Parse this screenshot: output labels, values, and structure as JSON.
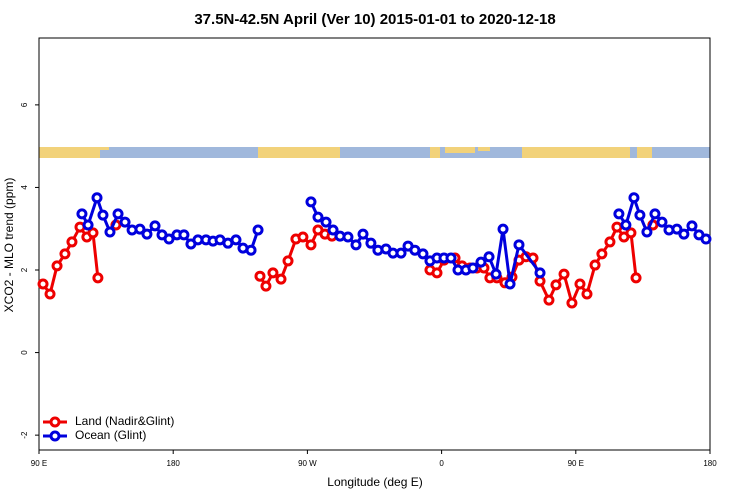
{
  "chart_data": {
    "type": "line",
    "title": "37.5N-42.5N April (Ver 10)   2015-01-01 to 2020-12-18",
    "x_label": "Longitude (deg E)",
    "y_label": "XCO2 - MLO trend (ppm)",
    "xlim": [
      90,
      540
    ],
    "ylim": [
      -2.36,
      7.62
    ],
    "xticks": [
      {
        "value": 90,
        "label": "90 E"
      },
      180,
      {
        "value": 270,
        "label": "90 W"
      },
      {
        "value": 360,
        "label": "0"
      },
      {
        "value": 450,
        "label": "90 E"
      },
      {
        "value": 540,
        "label": "180"
      }
    ],
    "yticks": [
      -2,
      0,
      2,
      4,
      6
    ],
    "legend": "bottom-left",
    "series": [
      {
        "name": "Land (Nadir&Glint)",
        "color": "#ee0000",
        "x": [
          92.7,
          97.4,
          102.1,
          107.4,
          112.1,
          117.5,
          122.1,
          126.2,
          129.5,
          null,
          141.6,
          null,
          238.2,
          242.2,
          246.9,
          252.3,
          257.0,
          262.3,
          267.0,
          272.4,
          277.1,
          281.8,
          286.5,
          null,
          352.2,
          356.9,
          361.6,
          369.0,
          373.7,
          379.0,
          383.7,
          388.4,
          392.4,
          397.1,
          402.5,
          407.2,
          411.9,
          416.6,
          421.3,
          426.0,
          432.0,
          436.7,
          442.1,
          447.4,
          452.8,
          457.5,
          462.9,
          467.5,
          472.9,
          477.6,
          482.3,
          487.0,
          490.4,
          null,
          501.7
        ],
        "values": [
          1.66,
          1.42,
          2.1,
          2.39,
          2.68,
          3.04,
          2.8,
          2.9,
          1.81,
          null,
          3.09,
          null,
          1.85,
          1.61,
          1.93,
          1.78,
          2.22,
          2.75,
          2.8,
          2.61,
          2.97,
          2.87,
          2.82,
          null,
          2.0,
          1.93,
          2.24,
          2.29,
          2.1,
          2.05,
          2.05,
          2.05,
          1.81,
          1.81,
          1.69,
          1.83,
          2.24,
          2.32,
          2.29,
          1.73,
          1.27,
          1.64,
          1.9,
          1.2,
          1.66,
          1.42,
          2.12,
          2.39,
          2.68,
          3.04,
          2.8,
          2.9,
          1.81,
          null,
          3.09
        ]
      },
      {
        "name": "Ocean (Glint)",
        "color": "#0000dd",
        "x": [
          118.8,
          122.9,
          128.9,
          132.9,
          137.6,
          143.0,
          147.7,
          152.4,
          157.7,
          162.4,
          167.8,
          172.5,
          177.2,
          182.5,
          187.2,
          191.9,
          196.6,
          202.0,
          206.7,
          211.4,
          216.7,
          222.1,
          226.8,
          232.2,
          236.9,
          null,
          272.4,
          277.1,
          282.5,
          287.2,
          291.9,
          297.2,
          302.6,
          307.3,
          312.6,
          317.3,
          322.7,
          327.4,
          332.8,
          337.5,
          342.1,
          347.5,
          352.2,
          356.9,
          361.6,
          366.3,
          371.0,
          376.3,
          381.0,
          386.4,
          391.8,
          396.5,
          401.2,
          405.9,
          411.9,
          426.0,
          null,
          478.9,
          483.6,
          489.0,
          493.0,
          497.7,
          503.1,
          507.8,
          512.5,
          517.8,
          522.5,
          527.9,
          532.6,
          537.3
        ],
        "values": [
          3.36,
          3.09,
          3.75,
          3.33,
          2.92,
          3.36,
          3.16,
          2.97,
          2.99,
          2.87,
          3.07,
          2.85,
          2.75,
          2.85,
          2.85,
          2.63,
          2.73,
          2.73,
          2.7,
          2.73,
          2.65,
          2.73,
          2.53,
          2.48,
          2.97,
          null,
          3.65,
          3.28,
          3.16,
          2.97,
          2.82,
          2.8,
          2.61,
          2.87,
          2.65,
          2.48,
          2.51,
          2.41,
          2.41,
          2.58,
          2.48,
          2.39,
          2.22,
          2.29,
          2.29,
          2.29,
          2.0,
          2.0,
          2.05,
          2.19,
          2.32,
          1.9,
          2.99,
          1.66,
          2.61,
          1.93,
          null,
          3.36,
          3.09,
          3.75,
          3.33,
          2.92,
          3.36,
          3.16,
          2.97,
          2.99,
          2.87,
          3.07,
          2.85,
          2.75
        ]
      }
    ]
  }
}
